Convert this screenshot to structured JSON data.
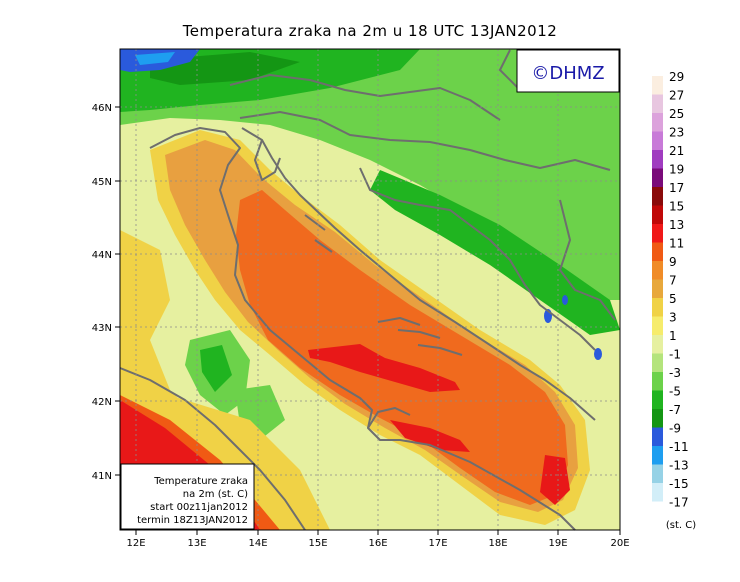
{
  "title": "Temperatura zraka na 2m u 18 UTC 13JAN2012",
  "logo": "©DHMZ",
  "info_box": {
    "line1": "Temperature zraka",
    "line2": "na 2m (st. C)",
    "line3": "start 00z11jan2012",
    "line4": "termin 18Z13JAN2012"
  },
  "lon_labels": [
    "12E",
    "13E",
    "14E",
    "15E",
    "16E",
    "17E",
    "18E",
    "19E",
    "20E"
  ],
  "lat_labels": [
    "46N",
    "45N",
    "44N",
    "43N",
    "42N",
    "41N"
  ],
  "colorbar": {
    "unit": "(st. C)",
    "labels": [
      "29",
      "27",
      "25",
      "23",
      "21",
      "19",
      "17",
      "15",
      "13",
      "11",
      "9",
      "7",
      "5",
      "3",
      "1",
      "-1",
      "-3",
      "-5",
      "-7",
      "-9",
      "-11",
      "-13",
      "-15",
      "-17"
    ],
    "colors": [
      "#fbeee0",
      "#e8c6e0",
      "#dca2dc",
      "#c87ad8",
      "#a03cc0",
      "#7a0a7a",
      "#8a0a0a",
      "#c00808",
      "#f01818",
      "#f05a14",
      "#f08c28",
      "#e8a83c",
      "#f0d246",
      "#f6ec6c",
      "#e6f0a0",
      "#b4e47c",
      "#6cd24a",
      "#20b420",
      "#149614",
      "#2a5adc",
      "#1e9ef0",
      "#96d2e6",
      "#d2eef8",
      "#ffffff"
    ]
  },
  "colors": {
    "sea_main": "#f06a1e",
    "sea_warm": "#e8a040",
    "hot_core": "#e81818",
    "coast_warm": "#f0d246",
    "inland_pale": "#e6f0a0",
    "land_green": "#6cd24a",
    "mountain_green": "#20b420",
    "cold_blue": "#2a5adc",
    "border_line": "#6e6e6e",
    "grid_line": "#8c8c8c"
  }
}
